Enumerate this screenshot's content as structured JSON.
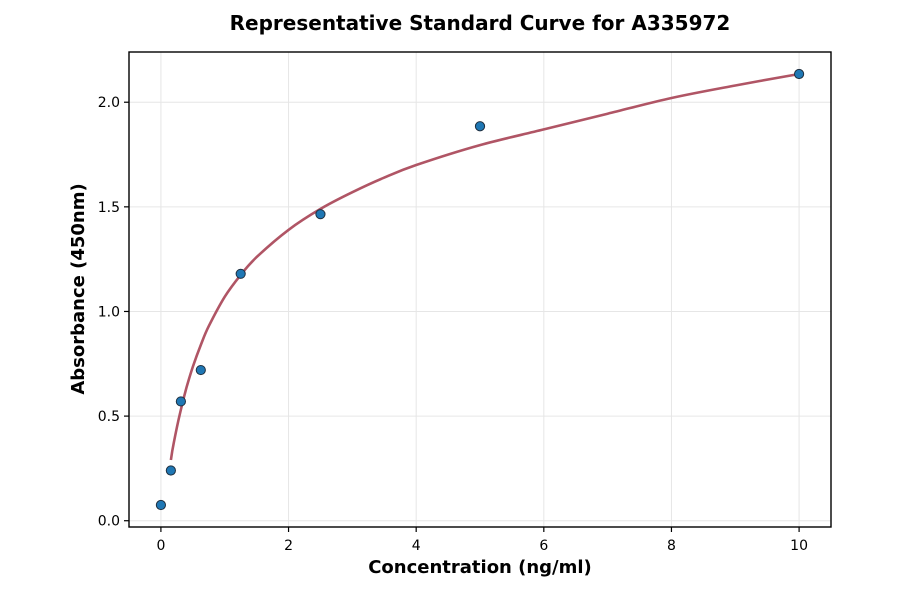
{
  "chart_data": {
    "type": "scatter",
    "title": "Representative Standard Curve for A335972",
    "xlabel": "Concentration (ng/ml)",
    "ylabel": "Absorbance (450nm)",
    "xlim": [
      -0.5,
      10.5
    ],
    "ylim": [
      -0.03,
      2.24
    ],
    "xticks": [
      0,
      2,
      4,
      6,
      8,
      10
    ],
    "xtick_labels": [
      "0",
      "2",
      "4",
      "6",
      "8",
      "10"
    ],
    "yticks": [
      0.0,
      0.5,
      1.0,
      1.5,
      2.0
    ],
    "ytick_labels": [
      "0.0",
      "0.5",
      "1.0",
      "1.5",
      "2.0"
    ],
    "grid": true,
    "series": [
      {
        "kind": "points",
        "color": "#1f77b4",
        "x": [
          0,
          0.156,
          0.313,
          0.625,
          1.25,
          2.5,
          5,
          10
        ],
        "y": [
          0.075,
          0.24,
          0.57,
          0.72,
          1.18,
          1.465,
          1.885,
          2.135
        ]
      },
      {
        "kind": "fit",
        "color": "#b05565",
        "x": [
          0.156,
          0.2,
          0.3,
          0.4,
          0.5,
          0.625,
          0.75,
          1.0,
          1.25,
          1.5,
          2.0,
          2.5,
          3.0,
          3.5,
          4.0,
          5.0,
          6.0,
          7.0,
          8.0,
          9.0,
          10.0
        ],
        "y": [
          0.29,
          0.37,
          0.515,
          0.635,
          0.735,
          0.84,
          0.93,
          1.07,
          1.175,
          1.26,
          1.39,
          1.49,
          1.57,
          1.64,
          1.7,
          1.795,
          1.87,
          1.945,
          2.02,
          2.08,
          2.135
        ]
      }
    ]
  }
}
